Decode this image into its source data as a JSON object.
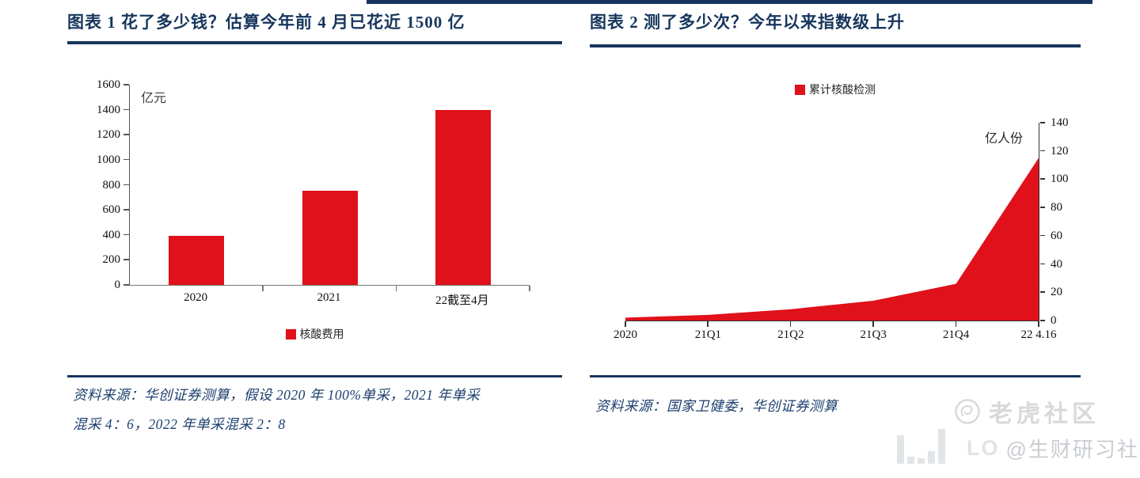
{
  "figure1": {
    "title": "图表 1  花了多少钱？估算今年前 4 月已花近 1500 亿",
    "legend_label": "核酸费用",
    "axis_unit": "亿元",
    "source_line1": "资料来源：华创证券测算，假设 2020 年 100%单采，2021 年单采",
    "source_line2": "混采 4：6，2022 年单采混采 2：8"
  },
  "figure2": {
    "title": "图表 2  测了多少次？今年以来指数级上升",
    "legend_label": "累计核酸检测",
    "axis_unit": "亿人份",
    "source": "资料来源：国家卫健委，华创证券测算"
  },
  "watermark": {
    "brand": "老虎社区",
    "partial_text": "LO",
    "handle": "@生财研习社",
    "icons": [
      "tiger-logo-icon",
      "bar-chart-icon"
    ]
  },
  "colors": {
    "accent_red": "#e0111a",
    "navy": "#17365d",
    "watermark_gray": "#d9d9d9",
    "axis_gray": "#595959"
  },
  "chart_data": [
    {
      "type": "bar",
      "title": "花了多少钱？估算今年前 4 月已花近 1500 亿",
      "categories": [
        "2020",
        "2021",
        "22截至4月"
      ],
      "values": [
        390,
        750,
        1400
      ],
      "ylabel": "亿元",
      "ylim": [
        0,
        1600
      ],
      "yticks": [
        0,
        200,
        400,
        600,
        800,
        1000,
        1200,
        1400,
        1600
      ],
      "legend": [
        "核酸费用"
      ],
      "legend_position": "bottom",
      "grid": false,
      "bar_color": "#e0111a"
    },
    {
      "type": "area",
      "title": "测了多少次？今年以来指数级上升",
      "x": [
        "2020",
        "21Q1",
        "21Q2",
        "21Q3",
        "21Q4",
        "22 4.16"
      ],
      "values": [
        2,
        4,
        8,
        14,
        26,
        115
      ],
      "ylabel": "亿人份",
      "ylim": [
        0,
        140
      ],
      "yticks": [
        0,
        20,
        40,
        60,
        80,
        100,
        120,
        140
      ],
      "yaxis_side": "right",
      "legend": [
        "累计核酸检测"
      ],
      "legend_position": "top",
      "grid": false,
      "area_color": "#e0111a"
    }
  ]
}
